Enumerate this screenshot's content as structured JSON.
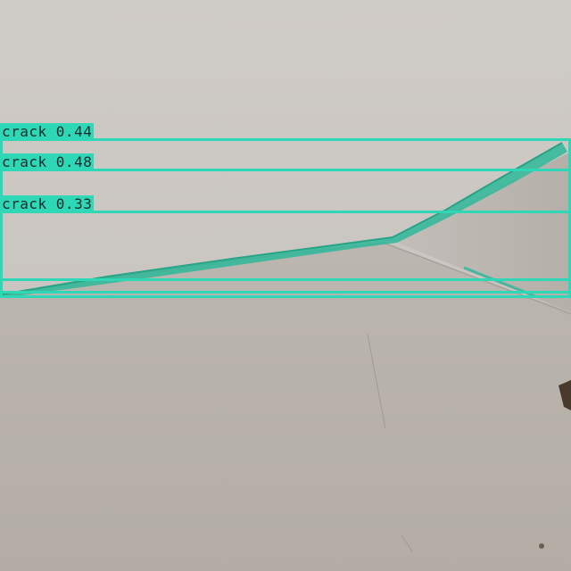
{
  "detections": [
    {
      "label": "crack",
      "confidence": "0.44",
      "color": "#2ed8b6"
    },
    {
      "label": "crack",
      "confidence": "0.48",
      "color": "#2ed8b6"
    },
    {
      "label": "crack",
      "confidence": "0.33",
      "color": "#2ed8b6"
    }
  ],
  "label_text": {
    "d0": "crack 0.44",
    "d1": "crack 0.48",
    "d2": "crack 0.33"
  },
  "colors": {
    "ceiling": "#c9c5c0",
    "wall_left": "#bdb7b1",
    "wall_right": "#b9b3ad",
    "mask": "#2fb89a",
    "box": "#2ed8b6"
  }
}
